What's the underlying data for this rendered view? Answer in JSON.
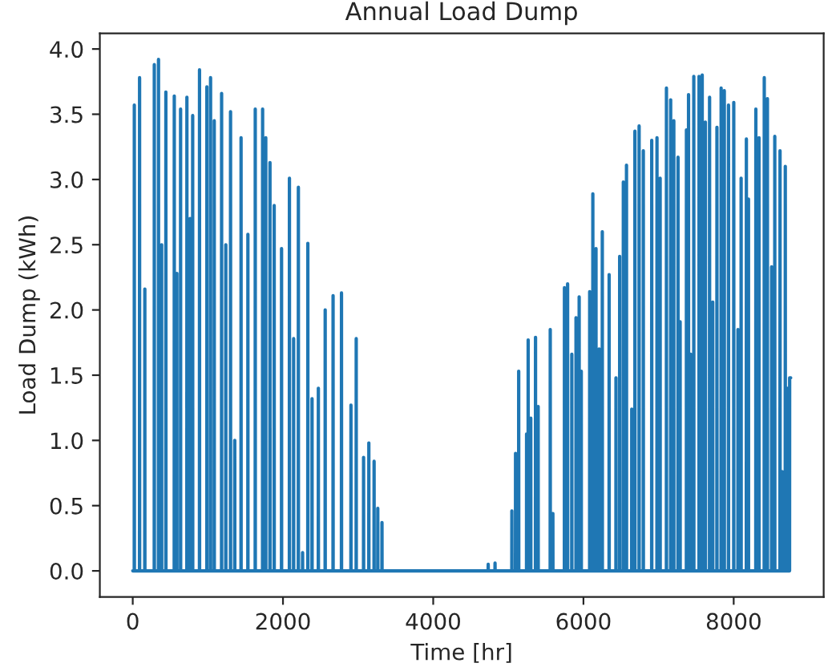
{
  "chart_data": {
    "type": "line",
    "title": "Annual Load Dump",
    "xlabel": "Time [hr]",
    "ylabel": "Load Dump (kWh)",
    "xlim": [
      -438,
      9198
    ],
    "xticks": [
      0,
      2000,
      4000,
      6000,
      8000
    ],
    "ylim": [
      -0.2,
      4.12
    ],
    "yticks": [
      {
        "value": 0,
        "label": "0.0"
      },
      {
        "value": 0.5,
        "label": "0.5"
      },
      {
        "value": 1,
        "label": "1.0"
      },
      {
        "value": 1.5,
        "label": "1.5"
      },
      {
        "value": 2,
        "label": "2.0"
      },
      {
        "value": 2.5,
        "label": "2.5"
      },
      {
        "value": 3,
        "label": "3.0"
      },
      {
        "value": 3.5,
        "label": "3.5"
      },
      {
        "value": 4,
        "label": "4.0"
      }
    ],
    "grid": false,
    "series": [
      {
        "color": "#1f77b4",
        "x": [
          0,
          20,
          21,
          22,
          90,
          91,
          92,
          160,
          161,
          162,
          286,
          287,
          288,
          342,
          343,
          344,
          384,
          385,
          386,
          440,
          441,
          442,
          552,
          553,
          554,
          587,
          588,
          589,
          636,
          637,
          638,
          720,
          721,
          722,
          762,
          763,
          764,
          797,
          798,
          799,
          888,
          889,
          890,
          986,
          987,
          988,
          1035,
          1036,
          1037,
          1084,
          1085,
          1086,
          1182,
          1183,
          1184,
          1238,
          1239,
          1240,
          1301,
          1302,
          1303,
          1357,
          1358,
          1359,
          1441,
          1442,
          1443,
          1532,
          1533,
          1534,
          1630,
          1631,
          1632,
          1728,
          1729,
          1730,
          1770,
          1771,
          1772,
          1826,
          1827,
          1828,
          1882,
          1883,
          1884,
          1980,
          1981,
          1982,
          2085,
          2086,
          2087,
          2141,
          2142,
          2143,
          2204,
          2205,
          2206,
          2260,
          2261,
          2262,
          2330,
          2331,
          2332,
          2386,
          2387,
          2388,
          2470,
          2471,
          2472,
          2561,
          2562,
          2563,
          2666,
          2667,
          2668,
          2778,
          2779,
          2780,
          2904,
          2905,
          2906,
          2974,
          2975,
          2976,
          3072,
          3073,
          3074,
          3142,
          3143,
          3144,
          3212,
          3213,
          3214,
          3261,
          3262,
          3263,
          3317,
          3318,
          3319,
          4731,
          4732,
          4733,
          4822,
          4823,
          4824,
          5046,
          5047,
          5048,
          5095,
          5096,
          5097,
          5137,
          5138,
          5139,
          5242,
          5243,
          5244,
          5263,
          5264,
          5265,
          5298,
          5299,
          5300,
          5361,
          5362,
          5363,
          5396,
          5397,
          5398,
          5557,
          5558,
          5559,
          5592,
          5593,
          5594,
          5746,
          5747,
          5748,
          5788,
          5789,
          5790,
          5844,
          5845,
          5846,
          5900,
          5901,
          5902,
          5942,
          5943,
          5944,
          5970,
          5971,
          5972,
          6082,
          6083,
          6084,
          6124,
          6125,
          6126,
          6166,
          6167,
          6168,
          6208,
          6209,
          6210,
          6250,
          6251,
          6252,
          6341,
          6342,
          6343,
          6432,
          6433,
          6434,
          6481,
          6482,
          6483,
          6530,
          6531,
          6532,
          6572,
          6573,
          6574,
          6642,
          6643,
          6644,
          6684,
          6685,
          6686,
          6740,
          6741,
          6742,
          6796,
          6797,
          6798,
          6908,
          6909,
          6910,
          6978,
          6979,
          6980,
          7020,
          7021,
          7022,
          7104,
          7105,
          7106,
          7160,
          7161,
          7162,
          7202,
          7203,
          7204,
          7258,
          7259,
          7260,
          7286,
          7287,
          7288,
          7370,
          7371,
          7372,
          7398,
          7399,
          7400,
          7426,
          7427,
          7428,
          7468,
          7469,
          7470,
          7538,
          7539,
          7540,
          7580,
          7581,
          7582,
          7622,
          7623,
          7624,
          7678,
          7679,
          7680,
          7720,
          7721,
          7722,
          7776,
          7777,
          7778,
          7832,
          7833,
          7834,
          7874,
          7875,
          7876,
          7930,
          7931,
          7932,
          8000,
          8001,
          8002,
          8056,
          8057,
          8058,
          8098,
          8099,
          8100,
          8168,
          8169,
          8170,
          8196,
          8197,
          8198,
          8294,
          8295,
          8296,
          8336,
          8337,
          8338,
          8406,
          8407,
          8408,
          8448,
          8449,
          8450,
          8504,
          8505,
          8506,
          8546,
          8547,
          8548,
          8616,
          8617,
          8618,
          8644,
          8645,
          8646,
          8686,
          8687,
          8688,
          8714,
          8715,
          8716,
          8744,
          8745,
          8759
        ],
        "values": [
          0,
          0,
          3.57,
          0,
          0,
          3.78,
          0,
          0,
          2.16,
          0,
          0,
          3.88,
          0,
          0,
          3.92,
          0,
          0,
          2.5,
          0,
          0,
          3.67,
          0,
          0,
          3.64,
          0,
          0,
          2.28,
          0,
          0,
          3.54,
          0,
          0,
          3.63,
          0,
          0,
          2.7,
          0,
          0,
          3.49,
          0,
          0,
          3.84,
          0,
          0,
          3.71,
          0,
          0,
          3.78,
          0,
          0,
          3.45,
          0,
          0,
          3.66,
          0,
          0,
          2.5,
          0,
          0,
          3.52,
          0,
          0,
          1.0,
          0,
          0,
          3.32,
          0,
          0,
          2.58,
          0,
          0,
          3.54,
          0,
          0,
          3.54,
          0,
          0,
          3.32,
          0,
          0,
          3.13,
          0,
          0,
          2.8,
          0,
          0,
          2.47,
          0,
          0,
          3.01,
          0,
          0,
          1.78,
          0,
          0,
          2.94,
          0,
          0,
          0.14,
          0,
          0,
          2.51,
          0,
          0,
          1.32,
          0,
          0,
          1.4,
          0,
          0,
          2.0,
          0,
          0,
          2.11,
          0,
          0,
          2.13,
          0,
          0,
          1.27,
          0,
          0,
          1.78,
          0,
          0,
          0.87,
          0,
          0,
          0.98,
          0,
          0,
          0.84,
          0,
          0,
          0.48,
          0,
          0,
          0.37,
          0,
          0,
          0.05,
          0,
          0,
          0.06,
          0,
          0,
          0.46,
          0,
          0,
          0.9,
          0,
          0,
          1.53,
          0,
          0,
          1.05,
          0,
          0,
          1.77,
          0,
          0,
          1.17,
          0,
          0,
          1.79,
          0,
          0,
          1.26,
          0,
          0,
          1.85,
          0,
          0,
          0.44,
          0,
          0,
          2.17,
          0,
          0,
          2.2,
          0,
          0,
          1.66,
          0,
          0,
          1.94,
          0,
          0,
          2.1,
          0,
          0,
          1.53,
          0,
          0,
          2.14,
          0,
          0,
          2.89,
          0,
          0,
          2.47,
          0,
          0,
          1.7,
          0,
          0,
          2.6,
          0,
          0,
          2.27,
          0,
          0,
          1.48,
          0,
          0,
          2.41,
          0,
          0,
          2.98,
          0,
          0,
          3.11,
          0,
          0,
          1.24,
          0,
          0,
          3.37,
          0,
          0,
          3.41,
          0,
          0,
          3.22,
          0,
          0,
          3.3,
          0,
          0,
          3.32,
          0,
          0,
          3.01,
          0,
          0,
          3.7,
          0,
          0,
          3.61,
          0,
          0,
          3.45,
          0,
          0,
          3.17,
          0,
          0,
          1.91,
          0,
          0,
          3.38,
          0,
          0,
          3.65,
          0,
          0,
          1.66,
          0,
          0,
          3.79,
          0,
          0,
          3.79,
          0,
          0,
          3.8,
          0,
          0,
          3.44,
          0,
          0,
          3.63,
          0,
          0,
          2.06,
          0,
          0,
          3.4,
          0,
          0,
          3.7,
          0,
          0,
          3.68,
          0,
          0,
          3.57,
          0,
          0,
          3.59,
          0,
          0,
          1.85,
          0,
          0,
          3.01,
          0,
          0,
          3.31,
          0,
          0,
          2.85,
          0,
          0,
          3.54,
          0,
          0,
          3.32,
          0,
          0,
          3.78,
          0,
          0,
          3.62,
          0,
          0,
          2.33,
          0,
          0,
          3.33,
          0,
          0,
          3.22,
          0,
          0,
          0.76,
          0,
          0,
          3.1,
          0,
          0,
          1.4,
          0,
          0,
          1.48,
          1.48
        ]
      }
    ]
  }
}
